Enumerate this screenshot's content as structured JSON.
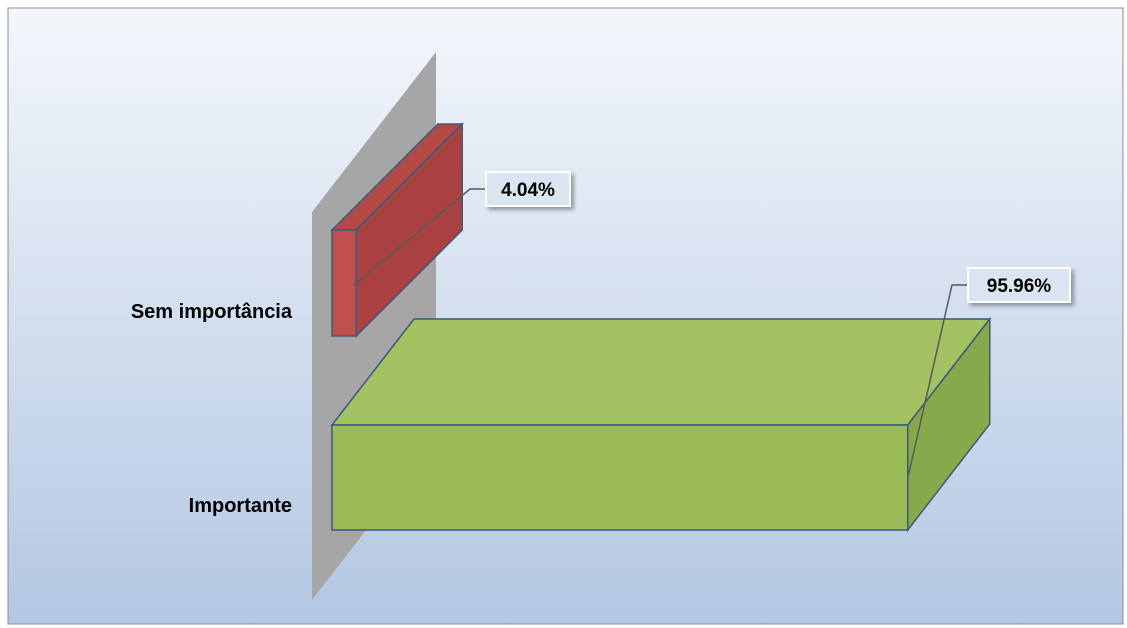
{
  "chart_data": {
    "type": "bar",
    "orientation": "horizontal",
    "three_d": true,
    "categories": [
      "Sem importância",
      "Importante"
    ],
    "values": [
      4.04,
      95.96
    ],
    "data_labels": [
      "4.04%",
      "95.96%"
    ],
    "unit": "%",
    "xlim": [
      0,
      100
    ],
    "grid": false,
    "legend": "none",
    "colors": {
      "bars": [
        "#c0504d",
        "#9bbb59"
      ],
      "bar_side": [
        "#a8413f",
        "#88a94b"
      ],
      "bar_top": [
        "#b34845",
        "#a4c262"
      ],
      "wall": "#a6a6a6",
      "label_box": "#dbe5f1",
      "background_top": "#f4f7fb",
      "background_bottom": "#b3c7e3"
    }
  }
}
